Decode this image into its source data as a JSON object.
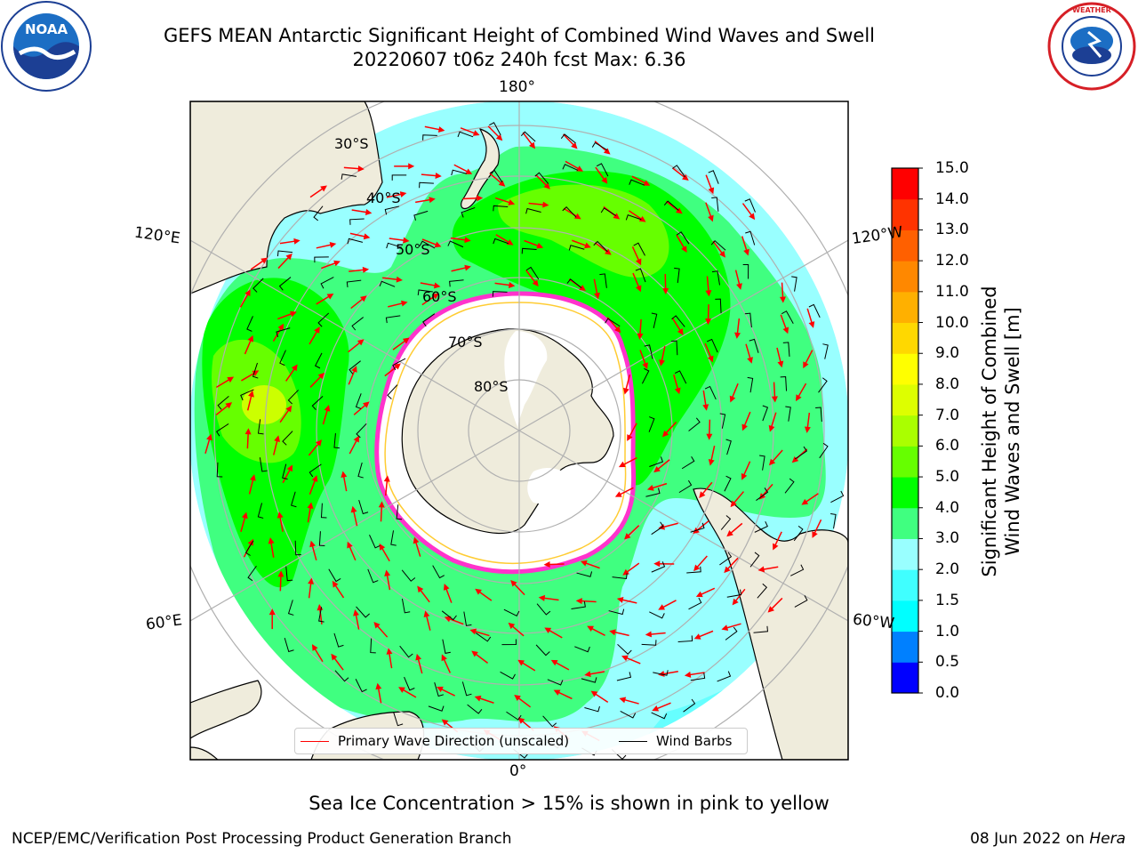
{
  "header": {
    "title_line1": "GEFS MEAN Antarctic Significant Height of Combined Wind Waves and Swell",
    "title_line2": "20220607 t06z 240h fcst   Max: 6.36"
  },
  "logos": {
    "noaa": {
      "text": "NOAA",
      "ring_text": "NATIONAL OCEANIC AND ATMOSPHERIC ADMINISTRATION · U.S. DEPARTMENT OF COMMERCE"
    },
    "nws": {
      "ring_text": "NATIONAL WEATHER SERVICE"
    }
  },
  "map": {
    "lon_labels": {
      "top": "180°",
      "bottom": "0°",
      "upper_left": "120°E",
      "upper_right": "120°W",
      "lower_left": "60°E",
      "lower_right": "60°W"
    },
    "lat_labels": [
      "30°S",
      "40°S",
      "50°S",
      "60°S",
      "70°S",
      "80°S"
    ],
    "colors": {
      "ocean_outside": "#ffffff",
      "land": "#efecdc",
      "ice": "#ffffff",
      "ice_edge": "#ff33cc",
      "grid": "#b0b0b0",
      "arrow": "#ff0000",
      "barb": "#000000"
    }
  },
  "colorbar": {
    "label_line1": "Significant Height of Combined",
    "label_line2": "Wind Waves and Swell [m]",
    "ticks": [
      "15.0",
      "14.0",
      "13.0",
      "12.0",
      "11.0",
      "10.0",
      "9.0",
      "8.0",
      "7.0",
      "6.0",
      "5.0",
      "4.0",
      "3.0",
      "2.0",
      "1.5",
      "1.0",
      "0.5",
      "0.0"
    ],
    "colors": [
      "#0000ff",
      "#0080ff",
      "#00ffff",
      "#40ffff",
      "#99ffff",
      "#40ff80",
      "#00ff00",
      "#66ff00",
      "#aaff00",
      "#ddff00",
      "#ffff00",
      "#ffd800",
      "#ffb000",
      "#ff8800",
      "#ff6000",
      "#ff3300",
      "#ff0000"
    ]
  },
  "legend": {
    "wave_direction": "Primary Wave Direction (unscaled)",
    "wind_barbs": "Wind Barbs",
    "wave_color": "#ff0000",
    "barb_color": "#000000"
  },
  "footer": {
    "note": "Sea Ice Concentration > 15% is shown in pink to yellow",
    "credit": "NCEP/EMC/Verification Post Processing Product Generation Branch",
    "date_prefix": "08 Jun 2022 on ",
    "date_host": "Hera"
  }
}
